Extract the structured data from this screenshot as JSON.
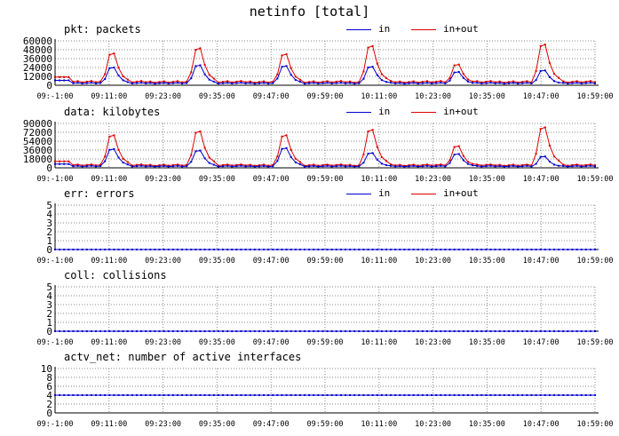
{
  "title": "netinfo [total]",
  "colors": {
    "in": "#0000cc",
    "inout": "#dd0000",
    "grid": "#888888",
    "axis": "#000000"
  },
  "chart_data": [
    {
      "id": "pkt",
      "type": "line",
      "title": "pkt: packets",
      "ylim": [
        0,
        60000
      ],
      "yticks": [
        "0",
        "12000",
        "24000",
        "36000",
        "48000",
        "60000"
      ],
      "xticks": [
        "09:-1:00",
        "09:11:00",
        "09:23:00",
        "09:35:00",
        "09:47:00",
        "09:59:00",
        "10:11:00",
        "10:23:00",
        "10:35:00",
        "10:47:00",
        "10:59:00"
      ],
      "series": [
        {
          "name": "in",
          "color": "#0000cc"
        },
        {
          "name": "in+out",
          "color": "#dd0000"
        }
      ],
      "peaks": [
        {
          "at": 12,
          "in": 24000,
          "inout": 43000
        },
        {
          "at": 31,
          "in": 27000,
          "inout": 50000
        },
        {
          "at": 50,
          "in": 26000,
          "inout": 42000
        },
        {
          "at": 69,
          "in": 25000,
          "inout": 53000
        },
        {
          "at": 88,
          "in": 18000,
          "inout": 28000
        },
        {
          "at": 107,
          "in": 20000,
          "inout": 55000
        }
      ],
      "baseline": {
        "in": 3000,
        "inout": 5000
      }
    },
    {
      "id": "data",
      "type": "line",
      "title": "data: kilobytes",
      "ylim": [
        0,
        90000
      ],
      "yticks": [
        "0",
        "18000",
        "36000",
        "54000",
        "72000",
        "90000"
      ],
      "xticks": [
        "09:-1:00",
        "09:11:00",
        "09:23:00",
        "09:35:00",
        "09:47:00",
        "09:59:00",
        "10:11:00",
        "10:23:00",
        "10:35:00",
        "10:47:00",
        "10:59:00"
      ],
      "series": [
        {
          "name": "in",
          "color": "#0000cc"
        },
        {
          "name": "in+out",
          "color": "#dd0000"
        }
      ],
      "peaks": [
        {
          "at": 12,
          "in": 38000,
          "inout": 66000
        },
        {
          "at": 31,
          "in": 35000,
          "inout": 74000
        },
        {
          "at": 50,
          "in": 40000,
          "inout": 66000
        },
        {
          "at": 69,
          "in": 30000,
          "inout": 77000
        },
        {
          "at": 88,
          "in": 28000,
          "inout": 44000
        },
        {
          "at": 107,
          "in": 23000,
          "inout": 82000
        }
      ],
      "baseline": {
        "in": 3500,
        "inout": 6000
      }
    },
    {
      "id": "err",
      "type": "line",
      "title": "err: errors",
      "ylim": [
        0,
        5
      ],
      "yticks": [
        "0",
        "1",
        "2",
        "3",
        "4",
        "5"
      ],
      "xticks": [
        "09:-1:00",
        "09:11:00",
        "09:23:00",
        "09:35:00",
        "09:47:00",
        "09:59:00",
        "10:11:00",
        "10:23:00",
        "10:35:00",
        "10:47:00",
        "10:59:00"
      ],
      "series": [
        {
          "name": "in",
          "color": "#0000cc"
        },
        {
          "name": "in+out",
          "color": "#dd0000"
        }
      ],
      "constant": 0
    },
    {
      "id": "coll",
      "type": "line",
      "title": "coll: collisions",
      "ylim": [
        0,
        5
      ],
      "yticks": [
        "0",
        "1",
        "2",
        "3",
        "4",
        "5"
      ],
      "xticks": [
        "09:-1:00",
        "09:11:00",
        "09:23:00",
        "09:35:00",
        "09:47:00",
        "09:59:00",
        "10:11:00",
        "10:23:00",
        "10:35:00",
        "10:47:00",
        "10:59:00"
      ],
      "series": [
        {
          "name": "collisions",
          "color": "#0000cc"
        }
      ],
      "constant": 0
    },
    {
      "id": "actv",
      "type": "line",
      "title": "actv_net: number of active interfaces",
      "ylim": [
        0,
        10
      ],
      "yticks": [
        "0",
        "2",
        "4",
        "6",
        "8",
        "10"
      ],
      "xticks": [
        "09:-1:00",
        "09:11:00",
        "09:23:00",
        "09:35:00",
        "09:47:00",
        "09:59:00",
        "10:11:00",
        "10:23:00",
        "10:35:00",
        "10:47:00",
        "10:59:00"
      ],
      "series": [
        {
          "name": "active interfaces",
          "color": "#0000cc"
        }
      ],
      "constant": 4
    }
  ]
}
